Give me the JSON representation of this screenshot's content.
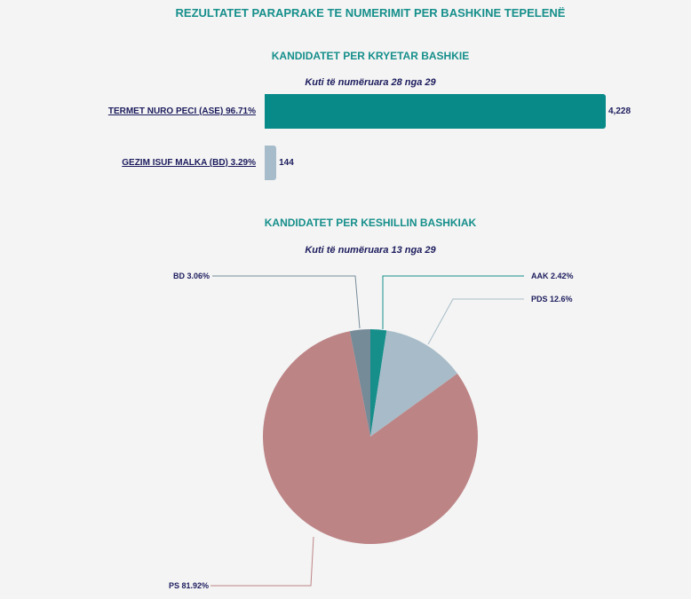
{
  "header": {
    "title": "REZULTATET PARAPRAKE TE NUMERIMIT PER BASHKINE TEPELENË"
  },
  "chart_data": [
    {
      "type": "bar",
      "title": "KANDIDATET PER KRYETAR BASHKIE",
      "subtitle": "Kuti të numëruara 28 nga 29",
      "categories": [
        "TERMET NURO PECI (ASE) 96.71%",
        "GEZIM ISUF MALKA (BD) 3.29%"
      ],
      "values": [
        4228,
        144
      ],
      "value_labels": [
        "4,228",
        "144"
      ],
      "colors": [
        "#078a88",
        "#a7bccb"
      ],
      "orientation": "horizontal"
    },
    {
      "type": "pie",
      "title": "KANDIDATET PER KESHILLIN BASHKIAK",
      "subtitle": "Kuti të numëruara 13 nga 29",
      "slices": [
        {
          "label": "AAK 2.42%",
          "value": 2.42,
          "color": "#168f8b"
        },
        {
          "label": "PDS 12.6%",
          "value": 12.6,
          "color": "#a7bcc8"
        },
        {
          "label": "PS 81.92%",
          "value": 81.92,
          "color": "#bd8486"
        },
        {
          "label": "BD 3.06%",
          "value": 3.06,
          "color": "#758b98"
        }
      ]
    }
  ]
}
